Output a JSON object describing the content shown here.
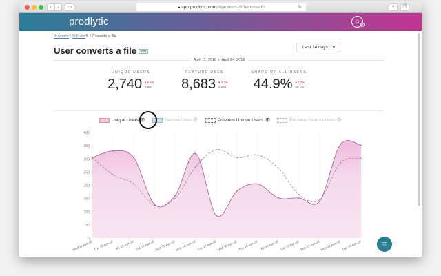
{
  "browser": {
    "url_host": "app.prodlytic.com",
    "url_path": "/#/products/6/features/6/",
    "back": "‹",
    "forward": "›",
    "reload": "↻"
  },
  "app": {
    "logo": "prodlytic"
  },
  "breadcrumb": {
    "products": "Products",
    "product": "SQLizer",
    "sep": "/",
    "current": "Converts a file"
  },
  "page": {
    "title": "User converts a file",
    "edit": "Edit"
  },
  "range": {
    "selected": "Last 14 days"
  },
  "date_range": "April 11, 2018 to April 24, 2018",
  "stats": [
    {
      "label": "UNIQUE USERS",
      "value": "2,740",
      "change": "▾ 5.6%",
      "previous": "2,904"
    },
    {
      "label": "FEATURE USES",
      "value": "8,683",
      "change": "▾ 4.2%",
      "previous": "9,065"
    },
    {
      "label": "SHARE OF ALL USERS",
      "value": "44.9%",
      "change": "▾ 5.3%",
      "previous": "50.1%"
    }
  ],
  "legend": [
    {
      "label": "Unique Users",
      "active": true,
      "color": "#f0c4e2"
    },
    {
      "label": "Feature Uses",
      "active": false,
      "color": "#c9e2ef"
    },
    {
      "label": "Previous Unique Users",
      "active": true,
      "color": "#ffffff"
    },
    {
      "label": "Previous Feature Uses",
      "active": false,
      "color": "#ffffff"
    }
  ],
  "colors": {
    "accent": "#b0508f",
    "fill": "#f6d9ec"
  },
  "chart_data": {
    "type": "area",
    "categories": [
      "Wed 11-Apr-18",
      "Thu 12-Apr-18",
      "Fri 13-Apr-18",
      "Sat 14-Apr-18",
      "Sun 15-Apr-18",
      "Mon 16-Apr-18",
      "Tue 17-Apr-18",
      "Wed 18-Apr-18",
      "Thu 19-Apr-18",
      "Fri 20-Apr-18",
      "Sat 21-Apr-18",
      "Sun 22-Apr-18",
      "Mon 23-Apr-18",
      "Tue 24-Apr-18"
    ],
    "series": [
      {
        "name": "Unique Users",
        "values": [
          305,
          330,
          305,
          128,
          160,
          320,
          85,
          178,
          205,
          152,
          152,
          140,
          355,
          352
        ]
      },
      {
        "name": "Previous Unique Users",
        "values": [
          305,
          240,
          205,
          125,
          150,
          270,
          335,
          305,
          315,
          265,
          165,
          145,
          285,
          303
        ]
      }
    ],
    "ylim": [
      0,
      400
    ],
    "yticks": [
      0,
      50,
      100,
      150,
      200,
      250,
      300,
      350,
      400
    ]
  }
}
